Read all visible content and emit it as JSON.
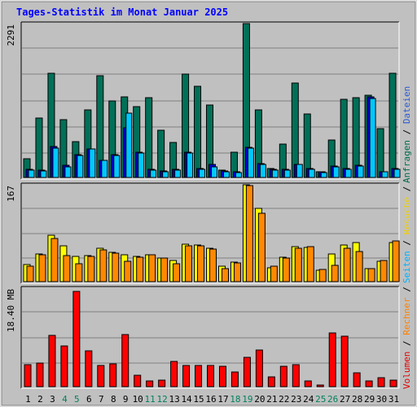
{
  "title": "Tages-Statistik im Monat Januar 2025",
  "axis": {
    "top_max_label": "2291",
    "mid_max_label": "167",
    "bot_max_label": "18.40 MB"
  },
  "right_legend": {
    "top": [
      {
        "text": "Anfragen",
        "color": "#006a4a"
      },
      {
        "text": " / ",
        "color": "#000000"
      },
      {
        "text": "Dateien",
        "color": "#2a5ad0"
      }
    ],
    "mid": [
      {
        "text": "Seiten",
        "color": "#00b0ff"
      },
      {
        "text": " / ",
        "color": "#000000"
      },
      {
        "text": "Besuche",
        "color": "#f0d000"
      },
      {
        "text": " / ",
        "color": "#000000"
      }
    ],
    "bot": [
      {
        "text": "Volumen",
        "color": "#e00000"
      },
      {
        "text": " / ",
        "color": "#000000"
      },
      {
        "text": "Rechner",
        "color": "#ff8000"
      },
      {
        "text": " / ",
        "color": "#000000"
      }
    ]
  },
  "colors": {
    "hits": "#007058",
    "files": "#0000d0",
    "pages": "#00c8ff",
    "visits": "#ffff00",
    "sites": "#ff8800",
    "kbytes": "#ff0000",
    "grid": "#7f7f7f",
    "weekend_label": "#00805c",
    "weekday_label": "#000000"
  },
  "chart_data": [
    {
      "type": "bar",
      "categories": [
        "1",
        "2",
        "3",
        "4",
        "5",
        "6",
        "7",
        "8",
        "9",
        "10",
        "11",
        "12",
        "13",
        "14",
        "15",
        "16",
        "17",
        "18",
        "19",
        "20",
        "21",
        "22",
        "23",
        "24",
        "25",
        "26",
        "27",
        "28",
        "29",
        "30",
        "31"
      ],
      "weekend_days": [
        "4",
        "5",
        "11",
        "12",
        "18",
        "19",
        "25",
        "26"
      ],
      "ylim": [
        0,
        2291
      ],
      "series": [
        {
          "name": "Anfragen",
          "values": [
            280,
            890,
            1550,
            860,
            530,
            1010,
            1510,
            1140,
            1200,
            1060,
            1190,
            700,
            520,
            1540,
            1360,
            1080,
            110,
            380,
            2291,
            1010,
            130,
            500,
            1410,
            950,
            80,
            560,
            1160,
            1190,
            1230,
            730,
            1550
          ]
        },
        {
          "name": "Dateien",
          "values": [
            120,
            110,
            460,
            180,
            340,
            430,
            260,
            340,
            740,
            370,
            120,
            100,
            120,
            370,
            130,
            190,
            100,
            80,
            450,
            210,
            120,
            120,
            200,
            130,
            80,
            170,
            130,
            180,
            1200,
            90,
            130
          ]
        },
        {
          "name": "Seiten",
          "values": [
            110,
            100,
            440,
            160,
            330,
            420,
            250,
            330,
            960,
            360,
            110,
            90,
            110,
            360,
            120,
            160,
            90,
            70,
            440,
            200,
            110,
            110,
            190,
            120,
            70,
            160,
            120,
            170,
            1180,
            80,
            120
          ]
        }
      ]
    },
    {
      "type": "bar",
      "categories": [
        "1",
        "2",
        "3",
        "4",
        "5",
        "6",
        "7",
        "8",
        "9",
        "10",
        "11",
        "12",
        "13",
        "14",
        "15",
        "16",
        "17",
        "18",
        "19",
        "20",
        "21",
        "22",
        "23",
        "24",
        "25",
        "26",
        "27",
        "28",
        "29",
        "30",
        "31"
      ],
      "ylim": [
        0,
        167
      ],
      "series": [
        {
          "name": "Besuche",
          "values": [
            29,
            48,
            80,
            62,
            43,
            45,
            57,
            50,
            46,
            44,
            46,
            40,
            36,
            65,
            63,
            58,
            26,
            33,
            167,
            126,
            24,
            42,
            60,
            59,
            20,
            48,
            63,
            67,
            23,
            35,
            67
          ]
        },
        {
          "name": "Rechner",
          "values": [
            26,
            46,
            75,
            45,
            31,
            44,
            55,
            49,
            35,
            42,
            47,
            41,
            31,
            62,
            62,
            56,
            23,
            32,
            166,
            118,
            26,
            40,
            58,
            60,
            21,
            28,
            58,
            52,
            23,
            36,
            70
          ]
        }
      ]
    },
    {
      "type": "bar",
      "categories": [
        "1",
        "2",
        "3",
        "4",
        "5",
        "6",
        "7",
        "8",
        "9",
        "10",
        "11",
        "12",
        "13",
        "14",
        "15",
        "16",
        "17",
        "18",
        "19",
        "20",
        "21",
        "22",
        "23",
        "24",
        "25",
        "26",
        "27",
        "28",
        "29",
        "30",
        "31"
      ],
      "ylim": [
        0,
        18.4
      ],
      "series": [
        {
          "name": "Volumen",
          "values": [
            4.1,
            4.4,
            9.6,
            7.6,
            17.8,
            6.7,
            3.9,
            4.2,
            9.8,
            2.1,
            1.0,
            1.2,
            4.7,
            4.0,
            3.9,
            4.0,
            3.8,
            2.8,
            5.5,
            6.9,
            1.9,
            3.8,
            4.1,
            1.1,
            0.3,
            10.0,
            9.5,
            2.6,
            1.1,
            1.7,
            1.2
          ]
        }
      ]
    }
  ]
}
